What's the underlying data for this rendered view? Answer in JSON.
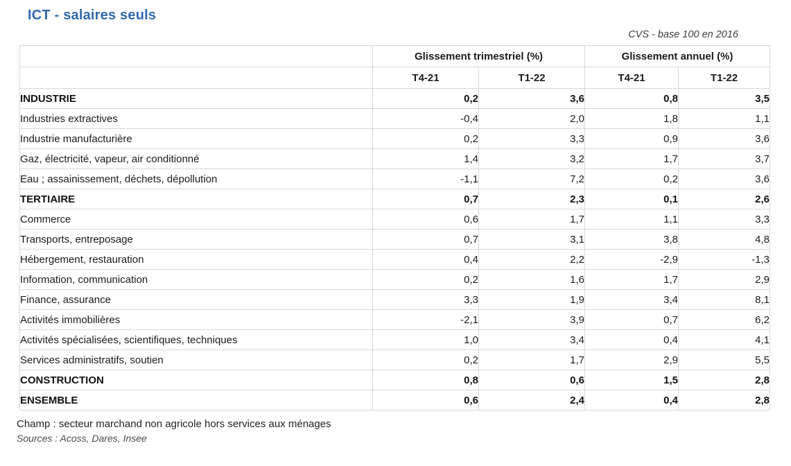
{
  "chart_data": {
    "type": "table",
    "title": "ICT - salaires seuls",
    "note": "CVS - base 100 en 2016",
    "column_groups": [
      "Glissement trimestriel (%)",
      "Glissement annuel (%)"
    ],
    "columns": [
      "T4-21",
      "T1-22",
      "T4-21",
      "T1-22"
    ],
    "rows": [
      {
        "label": "INDUSTRIE",
        "bold": true,
        "values": [
          "0,2",
          "3,6",
          "0,8",
          "3,5"
        ]
      },
      {
        "label": "Industries extractives",
        "bold": false,
        "values": [
          "-0,4",
          "2,0",
          "1,8",
          "1,1"
        ]
      },
      {
        "label": "Industrie manufacturière",
        "bold": false,
        "values": [
          "0,2",
          "3,3",
          "0,9",
          "3,6"
        ]
      },
      {
        "label": "Gaz, électricité, vapeur, air conditionné",
        "bold": false,
        "values": [
          "1,4",
          "3,2",
          "1,7",
          "3,7"
        ]
      },
      {
        "label": "Eau ; assainissement, déchets, dépollution",
        "bold": false,
        "values": [
          "-1,1",
          "7,2",
          "0,2",
          "3,6"
        ]
      },
      {
        "label": "TERTIAIRE",
        "bold": true,
        "values": [
          "0,7",
          "2,3",
          "0,1",
          "2,6"
        ]
      },
      {
        "label": "Commerce",
        "bold": false,
        "values": [
          "0,6",
          "1,7",
          "1,1",
          "3,3"
        ]
      },
      {
        "label": "Transports, entreposage",
        "bold": false,
        "values": [
          "0,7",
          "3,1",
          "3,8",
          "4,8"
        ]
      },
      {
        "label": "Hébergement, restauration",
        "bold": false,
        "values": [
          "0,4",
          "2,2",
          "-2,9",
          "-1,3"
        ]
      },
      {
        "label": "Information, communication",
        "bold": false,
        "values": [
          "0,2",
          "1,6",
          "1,7",
          "2,9"
        ]
      },
      {
        "label": "Finance, assurance",
        "bold": false,
        "values": [
          "3,3",
          "1,9",
          "3,4",
          "8,1"
        ]
      },
      {
        "label": "Activités immobilières",
        "bold": false,
        "values": [
          "-2,1",
          "3,9",
          "0,7",
          "6,2"
        ]
      },
      {
        "label": "Activités spécialisées, scientifiques, techniques",
        "bold": false,
        "values": [
          "1,0",
          "3,4",
          "0,4",
          "4,1"
        ]
      },
      {
        "label": "Services administratifs, soutien",
        "bold": false,
        "values": [
          "0,2",
          "1,7",
          "2,9",
          "5,5"
        ]
      },
      {
        "label": "CONSTRUCTION",
        "bold": true,
        "values": [
          "0,8",
          "0,6",
          "1,5",
          "2,8"
        ]
      },
      {
        "label": "ENSEMBLE",
        "bold": true,
        "values": [
          "0,6",
          "2,4",
          "0,4",
          "2,8"
        ]
      }
    ],
    "footer_champ": "Champ : secteur marchand non agricole hors services aux ménages",
    "footer_sources": "Sources : Acoss, Dares, Insee"
  },
  "colors": {
    "title_blue": "#2f69ae",
    "border_gray": "#d8d8d8",
    "text": "#1b1b1b",
    "muted_gray": "#4a4a4a"
  }
}
